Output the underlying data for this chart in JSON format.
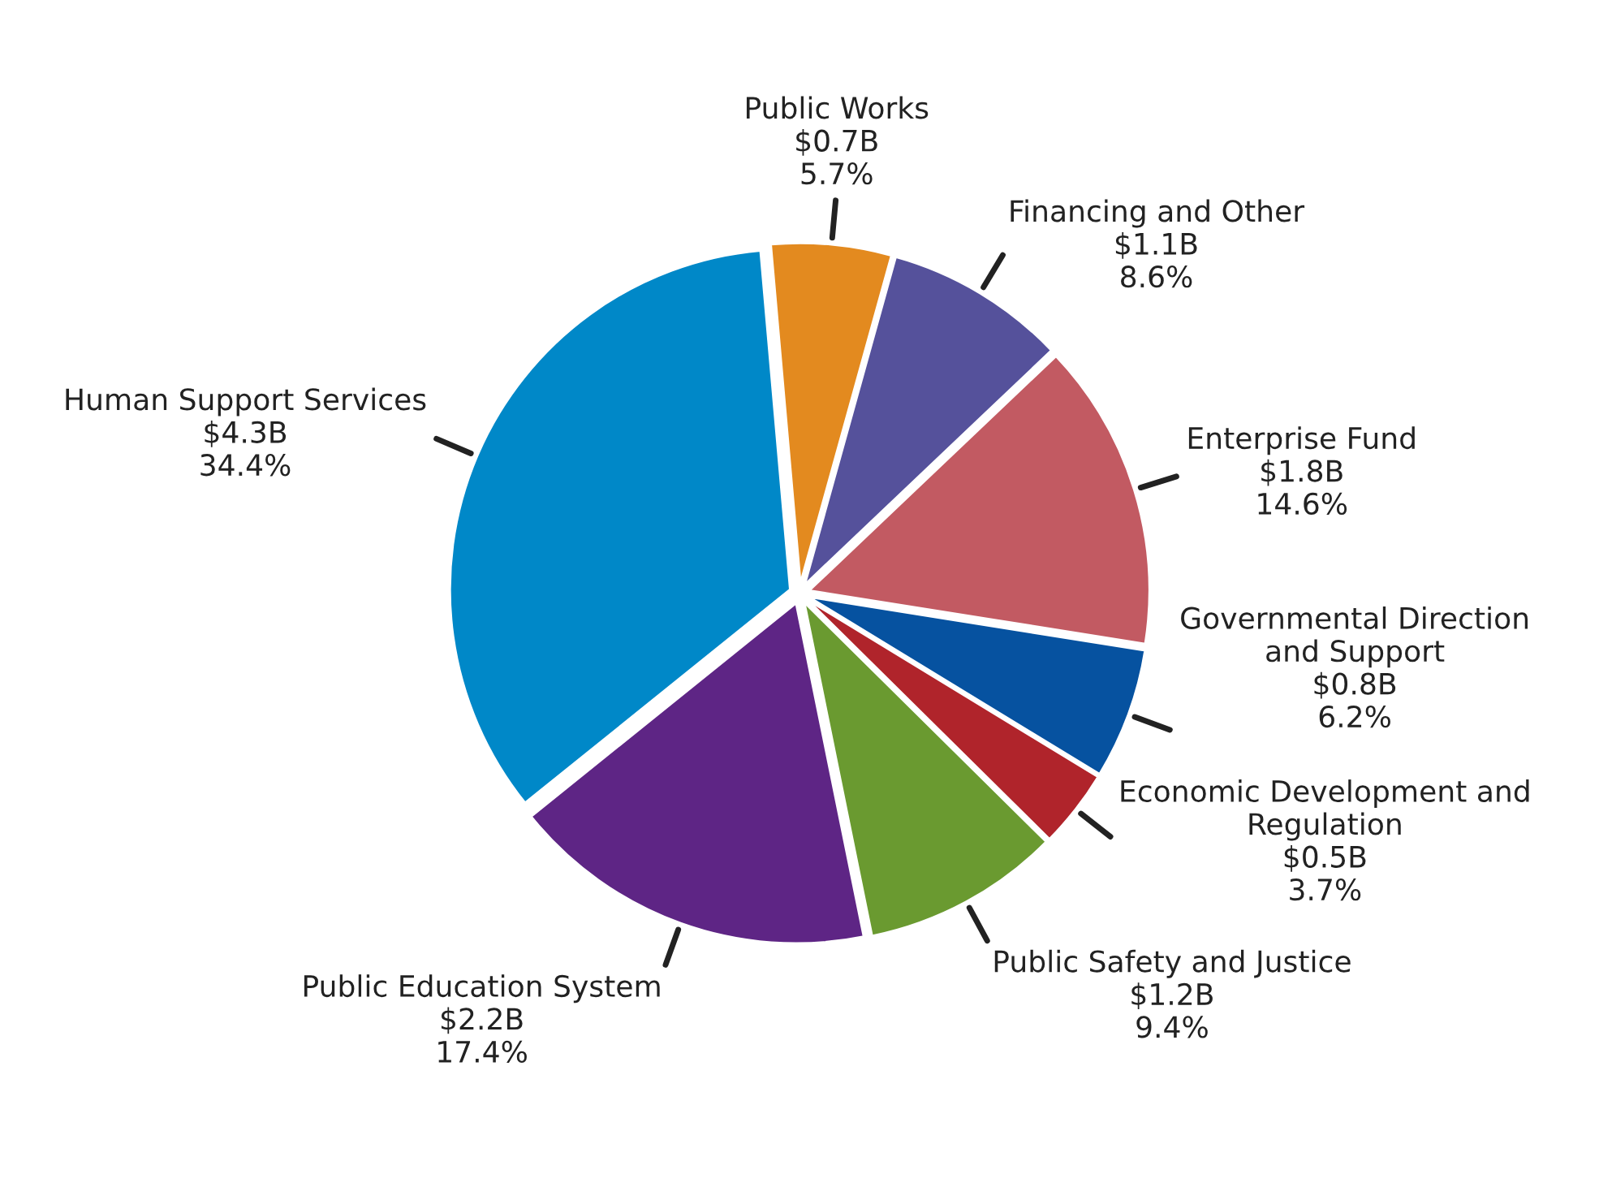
{
  "chart_data": {
    "type": "pie",
    "categories": [
      "Public Works",
      "Financing and Other",
      "Enterprise Fund",
      "Governmental Direction and Support",
      "Economic Development and Regulation",
      "Public Safety and Justice",
      "Public Education System",
      "Human Support Services"
    ],
    "values": [
      5.7,
      8.6,
      14.6,
      6.2,
      3.7,
      9.4,
      17.4,
      34.4
    ],
    "value_labels": [
      "$0.7B\n5.7%",
      "$1.1B\n8.6%",
      "$1.8B\n14.6%",
      "$0.8B\n6.2%",
      "$0.5B\n3.7%",
      "$1.2B\n9.4%",
      "$2.2B\n17.4%",
      "$4.3B\n34.4%"
    ],
    "colors": [
      "#e38a1f",
      "#55519b",
      "#c25a62",
      "#0652a0",
      "#b0242b",
      "#6a9a30",
      "#5e2585",
      "#0088c8"
    ],
    "legend": false
  }
}
